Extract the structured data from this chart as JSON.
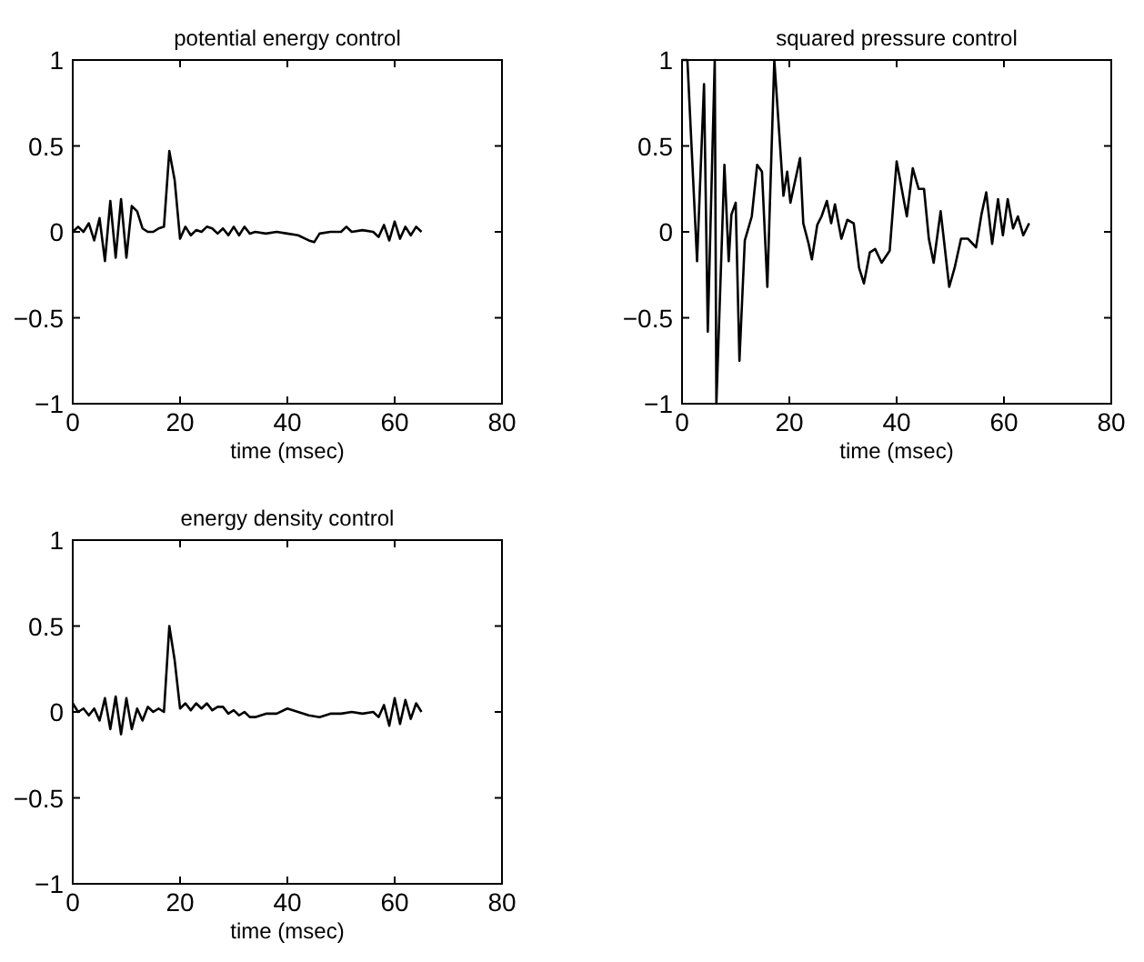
{
  "chart_data": [
    {
      "type": "line",
      "title": "potential energy control",
      "xlabel": "time (msec)",
      "xlim": [
        0,
        80
      ],
      "xticks": [
        0,
        20,
        40,
        60,
        80
      ],
      "ylim": [
        -1,
        1
      ],
      "yticks": [
        -1,
        -0.5,
        0,
        0.5,
        1
      ],
      "series": [
        {
          "color": "#000000",
          "x": [
            0,
            1,
            2,
            3,
            4,
            5,
            6,
            7,
            8,
            9,
            10,
            11,
            12,
            13,
            14,
            15,
            16,
            17,
            18,
            19,
            20,
            21,
            22,
            23,
            24,
            25,
            26,
            27,
            28,
            29,
            30,
            31,
            32,
            33,
            34,
            36,
            38,
            40,
            42,
            44,
            45,
            46,
            48,
            50,
            51,
            52,
            54,
            56,
            57,
            58,
            59,
            60,
            61,
            62,
            63,
            64,
            65
          ],
          "values": [
            0,
            0.03,
            0,
            0.05,
            -0.05,
            0.08,
            -0.17,
            0.18,
            -0.15,
            0.19,
            -0.15,
            0.15,
            0.12,
            0.02,
            0,
            0,
            0.02,
            0.03,
            0.47,
            0.3,
            -0.04,
            0.03,
            -0.02,
            0.01,
            0,
            0.03,
            0.02,
            -0.01,
            0.02,
            -0.02,
            0.03,
            -0.02,
            0.03,
            -0.01,
            0,
            -0.01,
            0,
            -0.01,
            -0.02,
            -0.05,
            -0.06,
            -0.01,
            0,
            0,
            0.03,
            0,
            0.01,
            0,
            -0.03,
            0.04,
            -0.05,
            0.06,
            -0.04,
            0.03,
            -0.02,
            0.03,
            0
          ]
        }
      ]
    },
    {
      "type": "line",
      "title": "squared pressure control",
      "xlabel": "time (msec)",
      "xlim": [
        0,
        80
      ],
      "xticks": [
        0,
        20,
        40,
        60,
        80
      ],
      "ylim": [
        -1,
        1
      ],
      "yticks": [
        -1,
        -0.5,
        0,
        0.5,
        1
      ],
      "series": [
        {
          "color": "#000000",
          "x": [
            0,
            1,
            2.8,
            4.1,
            4.8,
            6.1,
            6.4,
            7.9,
            8.7,
            9.2,
            10,
            10.7,
            11.7,
            13,
            14,
            14.9,
            15.9,
            17.2,
            18.9,
            19.6,
            20.2,
            21.1,
            22,
            22.6,
            23.6,
            24.2,
            25.2,
            26,
            27,
            27.8,
            28.5,
            29.7,
            30.8,
            32,
            33,
            33.9,
            35,
            36,
            37.2,
            38.7,
            40,
            41.9,
            43,
            44.1,
            45.1,
            46,
            46.9,
            48.2,
            49.8,
            50.8,
            52,
            53.3,
            54.8,
            55.8,
            56.7,
            57.8,
            58.9,
            59.8,
            60.7,
            61.7,
            62.6,
            63.6,
            64.7
          ],
          "values": [
            1,
            1,
            -0.17,
            0.86,
            -0.58,
            1,
            -1,
            0.39,
            -0.17,
            0.1,
            0.17,
            -0.75,
            -0.05,
            0.09,
            0.39,
            0.35,
            -0.32,
            1,
            0.21,
            0.35,
            0.17,
            0.3,
            0.43,
            0.05,
            -0.07,
            -0.16,
            0.04,
            0.09,
            0.18,
            0.05,
            0.16,
            -0.04,
            0.07,
            0.05,
            -0.21,
            -0.3,
            -0.12,
            -0.1,
            -0.18,
            -0.11,
            0.41,
            0.09,
            0.37,
            0.25,
            0.25,
            -0.04,
            -0.18,
            0.12,
            -0.32,
            -0.21,
            -0.04,
            -0.04,
            -0.09,
            0.1,
            0.23,
            -0.07,
            0.19,
            -0.02,
            0.19,
            0.02,
            0.09,
            -0.02,
            0.05
          ]
        }
      ]
    },
    {
      "type": "line",
      "title": "energy density control",
      "xlabel": "time (msec)",
      "xlim": [
        0,
        80
      ],
      "xticks": [
        0,
        20,
        40,
        60,
        80
      ],
      "ylim": [
        -1,
        1
      ],
      "yticks": [
        -1,
        -0.5,
        0,
        0.5,
        1
      ],
      "series": [
        {
          "color": "#000000",
          "x": [
            0,
            1,
            2,
            3,
            4,
            5,
            6,
            7,
            8,
            9,
            10,
            11,
            12,
            13,
            14,
            15,
            16,
            17,
            18,
            19,
            20,
            21,
            22,
            23,
            24,
            25,
            26,
            27,
            28,
            29,
            30,
            31,
            32,
            33,
            34,
            36,
            38,
            40,
            42,
            44,
            46,
            48,
            50,
            52,
            54,
            56,
            57,
            58,
            59,
            60,
            61,
            62,
            63,
            64,
            65
          ],
          "values": [
            0.05,
            0,
            0.02,
            -0.02,
            0.02,
            -0.05,
            0.08,
            -0.1,
            0.09,
            -0.13,
            0.08,
            -0.1,
            0.02,
            -0.05,
            0.03,
            0,
            0.02,
            0,
            0.5,
            0.3,
            0.02,
            0.05,
            0.01,
            0.05,
            0.02,
            0.05,
            0.01,
            0.03,
            0.03,
            -0.01,
            0.01,
            -0.02,
            0,
            -0.03,
            -0.03,
            -0.01,
            -0.01,
            0.02,
            0,
            -0.02,
            -0.03,
            -0.01,
            -0.01,
            0,
            -0.01,
            0,
            -0.03,
            0.04,
            -0.08,
            0.08,
            -0.07,
            0.07,
            -0.04,
            0.05,
            0
          ]
        }
      ]
    }
  ]
}
